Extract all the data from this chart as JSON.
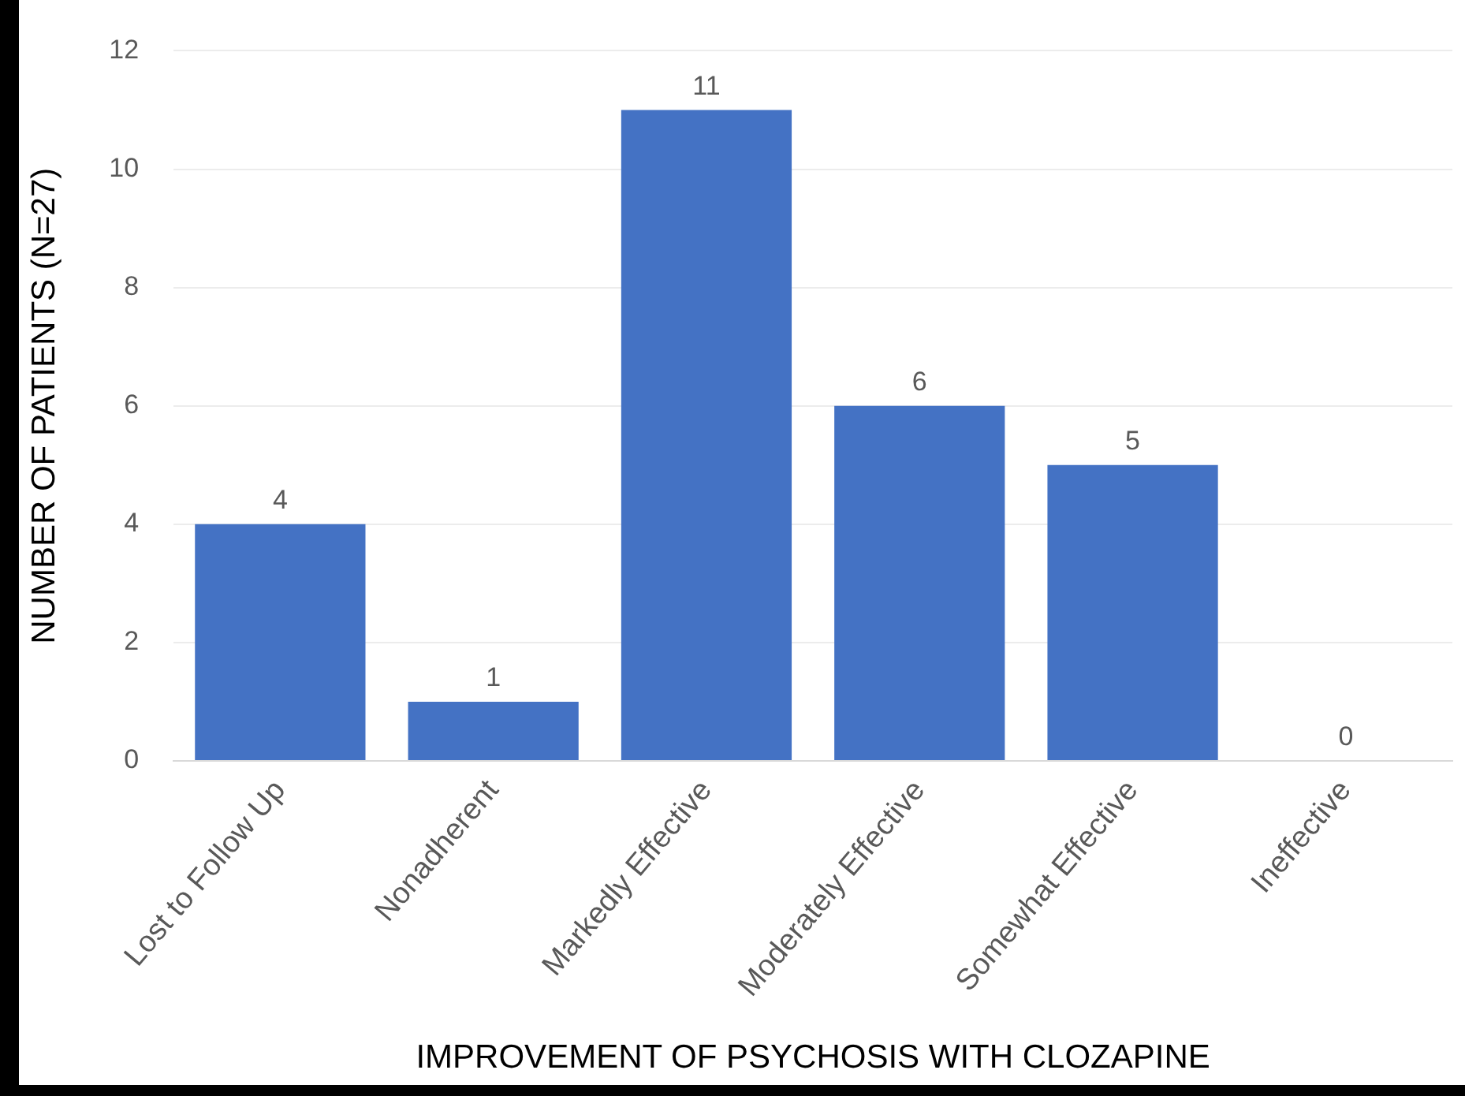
{
  "chart_data": {
    "type": "bar",
    "xlabel": "IMPROVEMENT OF PSYCHOSIS WITH CLOZAPINE",
    "ylabel": "NUMBER OF PATIENTS (N=27)",
    "categories": [
      "Lost to Follow Up",
      "Nonadherent",
      "Markedly Effective",
      "Moderately Effective",
      "Somewhat Effective",
      "Ineffective"
    ],
    "values": [
      4,
      1,
      11,
      6,
      5,
      0
    ],
    "color": "#4472c4",
    "ylim": [
      0,
      12
    ],
    "yticks": [
      0,
      2,
      4,
      6,
      8,
      10,
      12
    ],
    "grid": "y",
    "data_labels": true
  }
}
